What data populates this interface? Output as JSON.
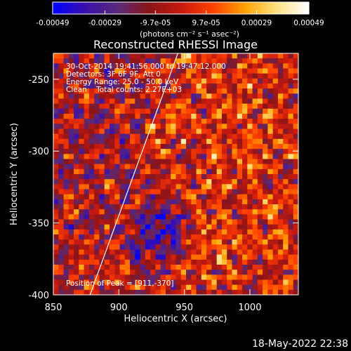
{
  "chart_data": {
    "type": "heatmap",
    "title": "Reconstructed RHESSI Image",
    "xlabel": "Heliocentric X (arcsec)",
    "ylabel": "Heliocentric Y (arcsec)",
    "xlim": [
      850,
      1037
    ],
    "ylim": [
      -400,
      -232
    ],
    "x_ticks": [
      850,
      900,
      950,
      1000
    ],
    "y_ticks": [
      -250,
      -300,
      -350,
      -400
    ],
    "colorbar": {
      "min": -0.00049,
      "max": 0.00049,
      "ticks": [
        "-0.00049",
        "-0.00029",
        "-9.7e-05",
        "9.7e-05",
        "0.00029",
        "0.00049"
      ],
      "unit_label": "(photons cm⁻² s⁻¹ asec⁻²)",
      "colors": [
        "#0000ff",
        "#3a10aa",
        "#5a2a7a",
        "#8a1418",
        "#c81a10",
        "#ff4000",
        "#ffa000",
        "#ffe080",
        "#ffffff"
      ]
    },
    "info_lines": [
      "30-Oct-2014 19:41:56.000 to 19:47:12.000",
      "Detectors: 3F 6F 9F, Att 0",
      "Energy Range: 25.0 - 50.0 keV",
      "Clean    Total counts: 2.27E+03"
    ],
    "peak_annotation": "Position of Peak = [911,-370]",
    "peak": {
      "x": 911,
      "y": -370
    },
    "limb_line": [
      [
        878,
        -400
      ],
      [
        945,
        -232
      ]
    ],
    "grid": false
  },
  "timestamp": "18-May-2022 22:38"
}
